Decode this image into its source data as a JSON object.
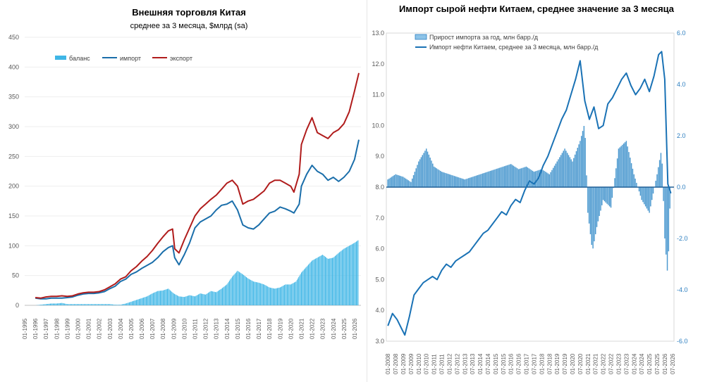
{
  "chart_data": [
    {
      "type": "line",
      "title": "Внешняя торговля Китая",
      "subtitle": "среднее за 3 месяца, $млрд (sa)",
      "ylim": [
        0,
        450
      ],
      "yticks": [
        "0",
        "50",
        "100",
        "150",
        "200",
        "250",
        "300",
        "350",
        "400",
        "450"
      ],
      "xticks": [
        "01-1995",
        "01-1996",
        "01-1997",
        "01-1998",
        "01-1999",
        "01-2000",
        "01-2001",
        "01-2002",
        "01-2003",
        "01-2004",
        "01-2005",
        "01-2006",
        "01-2007",
        "01-2008",
        "01-2009",
        "01-2010",
        "01-2011",
        "01-2012",
        "01-2013",
        "01-2014",
        "01-2015",
        "01-2016",
        "01-2017",
        "01-2018",
        "01-2019",
        "01-2020",
        "01-2021",
        "01-2022",
        "01-2023",
        "01-2024",
        "01-2025",
        "01-2026"
      ],
      "legend_position": "top-left",
      "series": [
        {
          "name": "баланс",
          "type": "bar",
          "color": "#3fb6e6",
          "x": [
            1996.0,
            1996.5,
            1997.0,
            1997.5,
            1998.0,
            1998.5,
            1999.0,
            1999.5,
            2000.0,
            2000.5,
            2001.0,
            2001.5,
            2002.0,
            2002.5,
            2003.0,
            2003.5,
            2004.0,
            2004.5,
            2005.0,
            2005.5,
            2006.0,
            2006.5,
            2007.0,
            2007.5,
            2008.0,
            2008.5,
            2009.0,
            2009.5,
            2010.0,
            2010.5,
            2011.0,
            2011.5,
            2012.0,
            2012.5,
            2013.0,
            2013.5,
            2014.0,
            2014.5,
            2015.0,
            2015.5,
            2016.0,
            2016.5,
            2017.0,
            2017.5,
            2018.0,
            2018.5,
            2019.0,
            2019.5,
            2020.0,
            2020.5,
            2021.0,
            2021.5,
            2022.0,
            2022.5,
            2023.0,
            2023.5,
            2024.0,
            2024.5,
            2025.0,
            2025.5,
            2026.0,
            2026.4
          ],
          "values": [
            0,
            1,
            2,
            3,
            3,
            4,
            2,
            2,
            2,
            2,
            2,
            2,
            2,
            2,
            2,
            1,
            1,
            3,
            6,
            9,
            12,
            15,
            20,
            24,
            25,
            28,
            20,
            15,
            14,
            17,
            15,
            20,
            18,
            24,
            22,
            28,
            35,
            48,
            58,
            52,
            45,
            40,
            38,
            35,
            30,
            28,
            30,
            35,
            35,
            40,
            55,
            65,
            75,
            80,
            85,
            78,
            80,
            88,
            95,
            100,
            105,
            110
          ]
        },
        {
          "name": "импорт",
          "type": "line",
          "color": "#1a6eaa",
          "x": [
            1996.0,
            1996.5,
            1997.0,
            1997.5,
            1998.0,
            1998.5,
            1999.0,
            1999.5,
            2000.0,
            2000.5,
            2001.0,
            2001.5,
            2002.0,
            2002.5,
            2003.0,
            2003.5,
            2004.0,
            2004.5,
            2005.0,
            2005.5,
            2006.0,
            2006.5,
            2007.0,
            2007.5,
            2008.0,
            2008.5,
            2008.9,
            2009.1,
            2009.5,
            2010.0,
            2010.5,
            2011.0,
            2011.5,
            2012.0,
            2012.5,
            2013.0,
            2013.5,
            2014.0,
            2014.5,
            2015.0,
            2015.5,
            2016.0,
            2016.5,
            2017.0,
            2017.5,
            2018.0,
            2018.5,
            2019.0,
            2019.5,
            2020.0,
            2020.3,
            2020.8,
            2021.0,
            2021.5,
            2022.0,
            2022.5,
            2023.0,
            2023.5,
            2024.0,
            2024.5,
            2025.0,
            2025.5,
            2026.0,
            2026.4
          ],
          "values": [
            12,
            11,
            11,
            12,
            12,
            12,
            13,
            14,
            17,
            19,
            20,
            20,
            21,
            23,
            28,
            32,
            40,
            44,
            52,
            56,
            62,
            67,
            72,
            80,
            90,
            97,
            100,
            80,
            68,
            85,
            105,
            130,
            140,
            145,
            150,
            160,
            168,
            170,
            175,
            160,
            135,
            130,
            128,
            135,
            145,
            155,
            158,
            165,
            162,
            158,
            155,
            170,
            200,
            220,
            235,
            225,
            220,
            210,
            215,
            208,
            215,
            225,
            245,
            278
          ]
        },
        {
          "name": "экспорт",
          "type": "line",
          "color": "#b01c1c",
          "x": [
            1996.0,
            1996.5,
            1997.0,
            1997.5,
            1998.0,
            1998.5,
            1999.0,
            1999.5,
            2000.0,
            2000.5,
            2001.0,
            2001.5,
            2002.0,
            2002.5,
            2003.0,
            2003.5,
            2004.0,
            2004.5,
            2005.0,
            2005.5,
            2006.0,
            2006.5,
            2007.0,
            2007.5,
            2008.0,
            2008.5,
            2008.9,
            2009.1,
            2009.5,
            2010.0,
            2010.5,
            2011.0,
            2011.5,
            2012.0,
            2012.5,
            2013.0,
            2013.5,
            2014.0,
            2014.5,
            2015.0,
            2015.5,
            2016.0,
            2016.5,
            2017.0,
            2017.5,
            2018.0,
            2018.5,
            2019.0,
            2019.5,
            2020.0,
            2020.3,
            2020.8,
            2021.0,
            2021.5,
            2022.0,
            2022.5,
            2023.0,
            2023.5,
            2024.0,
            2024.5,
            2025.0,
            2025.5,
            2026.0,
            2026.4
          ],
          "values": [
            13,
            12,
            14,
            15,
            15,
            16,
            15,
            16,
            19,
            21,
            22,
            22,
            23,
            26,
            31,
            36,
            44,
            48,
            58,
            65,
            74,
            82,
            92,
            104,
            115,
            125,
            128,
            95,
            88,
            110,
            130,
            150,
            162,
            170,
            178,
            185,
            195,
            205,
            210,
            200,
            170,
            175,
            178,
            185,
            192,
            205,
            210,
            210,
            205,
            200,
            190,
            220,
            270,
            295,
            315,
            290,
            285,
            280,
            290,
            295,
            305,
            325,
            360,
            390
          ]
        }
      ]
    },
    {
      "type": "bar+line",
      "title": "Импорт сырой нефти Китаем, среднее значение за 3 месяца",
      "yleft_lim": [
        3.0,
        13.0
      ],
      "yleft_ticks": [
        "3.0",
        "4.0",
        "5.0",
        "6.0",
        "7.0",
        "8.0",
        "9.0",
        "10.0",
        "11.0",
        "12.0",
        "13.0"
      ],
      "yright_lim": [
        -6.0,
        6.0
      ],
      "yright_ticks": [
        "-6.0",
        "-4.0",
        "-2.0",
        "0.0",
        "2.0",
        "4.0",
        "6.0"
      ],
      "xticks": [
        "01-2008",
        "07-2008",
        "01-2009",
        "07-2009",
        "01-2010",
        "07-2010",
        "01-2011",
        "07-2011",
        "01-2012",
        "07-2012",
        "01-2013",
        "07-2013",
        "01-2014",
        "07-2014",
        "01-2015",
        "07-2015",
        "01-2016",
        "07-2016",
        "01-2017",
        "07-2017",
        "01-2018",
        "07-2018",
        "01-2019",
        "07-2019",
        "01-2020",
        "07-2020",
        "01-2021",
        "07-2021",
        "01-2022",
        "07-2022",
        "01-2023",
        "07-2023",
        "01-2024",
        "07-2024",
        "01-2025",
        "07-2025",
        "01-2026",
        "07-2026"
      ],
      "legend_position": "top-left",
      "series": [
        {
          "name": "Прирост импорта за год, млн барр./д",
          "type": "bar",
          "axis": "right",
          "color": "#4a98cf",
          "x": [
            2008.0,
            2008.5,
            2009.0,
            2009.5,
            2010.0,
            2010.5,
            2011.0,
            2011.5,
            2012.0,
            2012.5,
            2013.0,
            2013.5,
            2014.0,
            2014.5,
            2015.0,
            2015.5,
            2016.0,
            2016.5,
            2017.0,
            2017.5,
            2018.0,
            2018.5,
            2019.0,
            2019.5,
            2020.0,
            2020.5,
            2020.8,
            2021.0,
            2021.3,
            2021.6,
            2022.0,
            2022.5,
            2023.0,
            2023.5,
            2024.0,
            2024.5,
            2025.0,
            2025.5,
            2025.8,
            2026.0,
            2026.2,
            2026.4
          ],
          "values": [
            0.3,
            0.5,
            0.4,
            0.2,
            1.0,
            1.5,
            0.8,
            0.6,
            0.5,
            0.4,
            0.3,
            0.4,
            0.5,
            0.6,
            0.7,
            0.8,
            0.9,
            0.7,
            0.8,
            0.6,
            0.7,
            0.5,
            1.0,
            1.5,
            1.0,
            1.8,
            2.5,
            -1.0,
            -2.5,
            -1.5,
            -0.5,
            -0.8,
            1.5,
            1.8,
            0.5,
            -0.5,
            -1.0,
            0.5,
            1.5,
            -2.0,
            -3.5,
            0.5
          ]
        },
        {
          "name": "Импорт нефти Китаем, среднее за 3 месяца, млн барр./д",
          "type": "line",
          "axis": "left",
          "color": "#1a72b5",
          "x": [
            2008.0,
            2008.3,
            2008.6,
            2008.9,
            2009.1,
            2009.4,
            2009.7,
            2010.0,
            2010.3,
            2010.6,
            2010.9,
            2011.2,
            2011.5,
            2011.8,
            2012.1,
            2012.4,
            2012.7,
            2013.0,
            2013.3,
            2013.6,
            2013.9,
            2014.2,
            2014.5,
            2014.8,
            2015.1,
            2015.4,
            2015.7,
            2016.0,
            2016.3,
            2016.6,
            2016.9,
            2017.2,
            2017.5,
            2017.8,
            2018.1,
            2018.4,
            2018.7,
            2019.0,
            2019.3,
            2019.6,
            2019.9,
            2020.2,
            2020.5,
            2020.8,
            2021.1,
            2021.4,
            2021.7,
            2022.0,
            2022.3,
            2022.6,
            2022.9,
            2023.2,
            2023.5,
            2023.8,
            2024.1,
            2024.4,
            2024.7,
            2025.0,
            2025.3,
            2025.6,
            2025.8,
            2026.0,
            2026.2,
            2026.4
          ],
          "values": [
            3.5,
            3.9,
            3.7,
            3.4,
            3.2,
            3.8,
            4.5,
            4.7,
            4.9,
            5.0,
            5.1,
            5.0,
            5.3,
            5.5,
            5.4,
            5.6,
            5.7,
            5.8,
            5.9,
            6.1,
            6.3,
            6.5,
            6.6,
            6.8,
            7.0,
            7.2,
            7.1,
            7.4,
            7.6,
            7.5,
            7.9,
            8.2,
            8.1,
            8.3,
            8.7,
            9.0,
            9.4,
            9.8,
            10.2,
            10.5,
            11.0,
            11.5,
            12.1,
            10.8,
            10.2,
            10.6,
            9.9,
            10.0,
            10.7,
            10.9,
            11.2,
            11.5,
            11.7,
            11.3,
            11.0,
            11.2,
            11.5,
            11.1,
            11.6,
            12.3,
            12.4,
            11.5,
            8.1,
            7.8
          ]
        }
      ]
    }
  ]
}
